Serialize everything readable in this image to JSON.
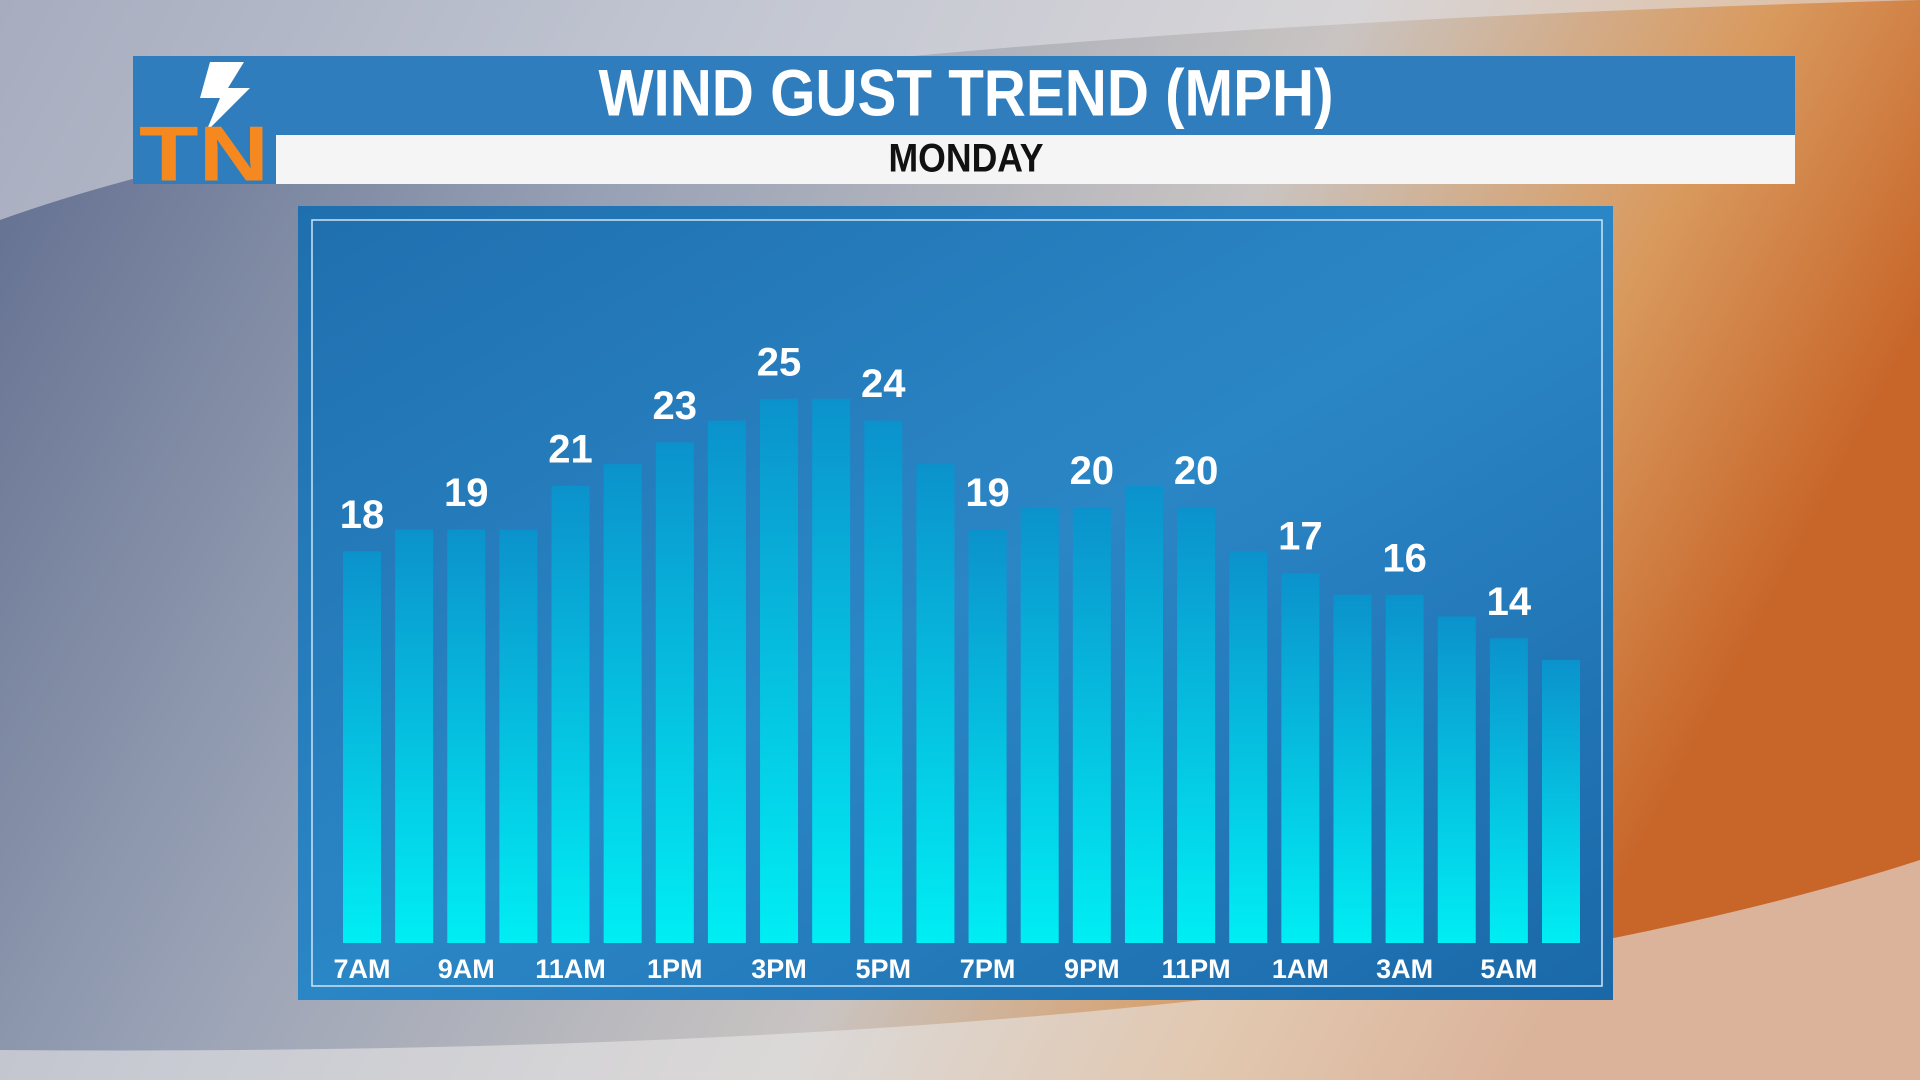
{
  "chart_data": {
    "type": "bar",
    "logo": "TN",
    "title": "WIND GUST TREND (MPH)",
    "subtitle": "MONDAY",
    "categories": [
      "7AM",
      null,
      "9AM",
      null,
      "11AM",
      null,
      "1PM",
      null,
      "3PM",
      null,
      "5PM",
      null,
      "7PM",
      null,
      "9PM",
      null,
      "11PM",
      null,
      "1AM",
      null,
      "3AM",
      null,
      "5AM",
      null
    ],
    "values": [
      18,
      19,
      19,
      19,
      21,
      22,
      23,
      24,
      25,
      25,
      24,
      22,
      19,
      20,
      20,
      21,
      20,
      18,
      17,
      16,
      16,
      15,
      14,
      13
    ],
    "ylim": [
      0,
      30
    ],
    "grid": false
  }
}
